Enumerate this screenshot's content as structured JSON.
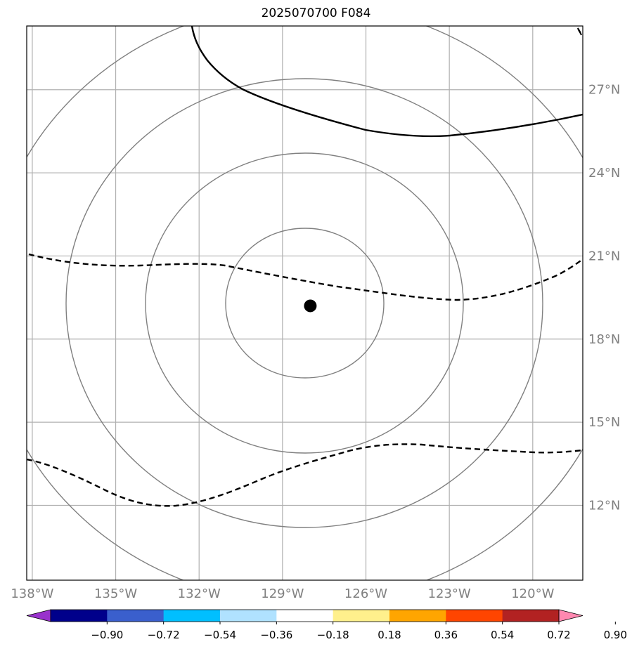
{
  "title": "2025070700 F084",
  "map": {
    "lon_labels": [
      "138°W",
      "135°W",
      "132°W",
      "129°W",
      "126°W",
      "123°W",
      "120°W"
    ],
    "lon_values": [
      -138,
      -135,
      -132,
      -129,
      -126,
      -123,
      -120
    ],
    "lat_labels": [
      "27°N",
      "24°N",
      "21°N",
      "18°N",
      "15°N",
      "12°N"
    ],
    "lat_values": [
      27,
      24,
      21,
      18,
      15,
      12
    ],
    "lon_range": [
      -138.2,
      -118.2
    ],
    "lat_range": [
      9.3,
      29.3
    ],
    "storm_center": {
      "lon": -128.0,
      "lat": 19.2,
      "marker": "filled-circle"
    },
    "range_rings_count": 4,
    "contours": {
      "solid": "positive",
      "dashed": "negative"
    }
  },
  "colorbar": {
    "tick_labels": [
      "−0.90",
      "−0.72",
      "−0.54",
      "−0.36",
      "−0.18",
      "0.18",
      "0.36",
      "0.54",
      "0.72",
      "0.90"
    ],
    "colors": [
      "#9932cc",
      "#00008b",
      "#3a5fcd",
      "#00bfff",
      "#b0e2ff",
      "#ffffff",
      "#fff08c",
      "#ffa500",
      "#ff4500",
      "#b22222",
      "#ff88b0"
    ]
  },
  "colors": {
    "grid": "#b0b0b0",
    "ring": "#808080",
    "contour": "#000000"
  }
}
